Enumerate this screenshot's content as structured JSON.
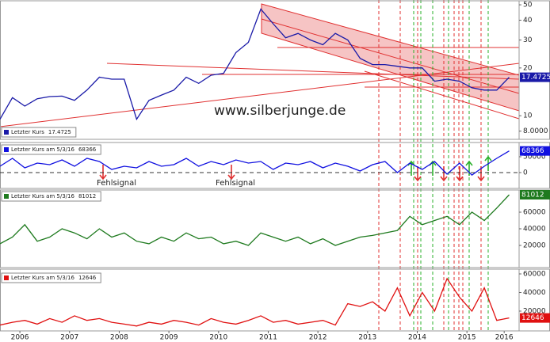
{
  "chart_data": [
    {
      "type": "line",
      "log_scale": true,
      "ylim": [
        7.1,
        53
      ],
      "xlim": [
        2006.1,
        2016.55
      ],
      "yticks": [
        {
          "value": 8,
          "label": "8.0000"
        },
        10,
        20,
        30,
        40,
        50
      ],
      "annotations": [
        "www.silberjunge.de"
      ],
      "series": [
        {
          "name": "Letzter Kurs",
          "color": "#1a1aa8",
          "x": [
            2006.1,
            2006.35,
            2006.6,
            2006.85,
            2007.1,
            2007.35,
            2007.6,
            2007.85,
            2008.1,
            2008.35,
            2008.6,
            2008.85,
            2009.1,
            2009.35,
            2009.6,
            2009.85,
            2010.1,
            2010.35,
            2010.6,
            2010.85,
            2011.1,
            2011.35,
            2011.6,
            2011.85,
            2012.1,
            2012.35,
            2012.6,
            2012.85,
            2013.1,
            2013.35,
            2013.6,
            2013.85,
            2014.1,
            2014.35,
            2014.6,
            2014.85,
            2015.1,
            2015.35,
            2015.6,
            2015.85,
            2016.1,
            2016.35
          ],
          "values": [
            9.5,
            13,
            11.5,
            12.8,
            13.2,
            13.3,
            12.5,
            14.5,
            17.5,
            17,
            17,
            9.5,
            12.5,
            13.5,
            14.5,
            17.5,
            16,
            18,
            18.5,
            25,
            29,
            47,
            38,
            31,
            33,
            30,
            28,
            33,
            30,
            23,
            21,
            21,
            20.5,
            20,
            20,
            16.5,
            17,
            16.5,
            15,
            14.5,
            14.5,
            17.4725
          ]
        }
      ]
    },
    {
      "type": "line",
      "ylim": [
        -50000,
        95000
      ],
      "xlim": [
        2006.1,
        2016.55
      ],
      "yticks": [
        0,
        50000
      ],
      "dashed_zero": true,
      "annotations": [
        "Fehlsignal",
        "Fehlsignal"
      ],
      "series": [
        {
          "name": "Letzter Kurs am 5/3/16",
          "color": "#1010e0",
          "x": [
            2006.1,
            2006.35,
            2006.6,
            2006.85,
            2007.1,
            2007.35,
            2007.6,
            2007.85,
            2008.1,
            2008.35,
            2008.6,
            2008.85,
            2009.1,
            2009.35,
            2009.6,
            2009.85,
            2010.1,
            2010.35,
            2010.6,
            2010.85,
            2011.1,
            2011.35,
            2011.6,
            2011.85,
            2012.1,
            2012.35,
            2012.6,
            2012.85,
            2013.1,
            2013.35,
            2013.6,
            2013.85,
            2014.1,
            2014.35,
            2014.6,
            2014.85,
            2015.1,
            2015.35,
            2015.6,
            2015.85,
            2016.1,
            2016.35
          ],
          "values": [
            20000,
            45000,
            15000,
            30000,
            25000,
            40000,
            20000,
            45000,
            35000,
            10000,
            20000,
            15000,
            35000,
            20000,
            25000,
            45000,
            20000,
            35000,
            25000,
            40000,
            30000,
            35000,
            10000,
            30000,
            25000,
            35000,
            15000,
            30000,
            20000,
            5000,
            25000,
            35000,
            0,
            30000,
            10000,
            35000,
            -5000,
            30000,
            -8000,
            20000,
            45000,
            68366
          ]
        }
      ]
    },
    {
      "type": "line",
      "ylim": [
        -6700,
        86700
      ],
      "xlim": [
        2006.1,
        2016.55
      ],
      "yticks": [
        20000,
        40000,
        60000
      ],
      "series": [
        {
          "name": "Letzter Kurs am 5/3/16",
          "color": "#1e7a1e",
          "x": [
            2006.1,
            2006.35,
            2006.6,
            2006.85,
            2007.1,
            2007.35,
            2007.6,
            2007.85,
            2008.1,
            2008.35,
            2008.6,
            2008.85,
            2009.1,
            2009.35,
            2009.6,
            2009.85,
            2010.1,
            2010.35,
            2010.6,
            2010.85,
            2011.1,
            2011.35,
            2011.6,
            2011.85,
            2012.1,
            2012.35,
            2012.6,
            2012.85,
            2013.1,
            2013.35,
            2013.6,
            2013.85,
            2014.1,
            2014.35,
            2014.6,
            2014.85,
            2015.1,
            2015.35,
            2015.6,
            2015.85,
            2016.1,
            2016.35
          ],
          "values": [
            22000,
            30000,
            45000,
            25000,
            30000,
            40000,
            35000,
            28000,
            40000,
            30000,
            35000,
            25000,
            22000,
            30000,
            25000,
            35000,
            28000,
            30000,
            22000,
            25000,
            20000,
            35000,
            30000,
            25000,
            30000,
            22000,
            28000,
            20000,
            25000,
            30000,
            32000,
            35000,
            38000,
            55000,
            45000,
            50000,
            55000,
            45000,
            60000,
            50000,
            65000,
            81012
          ]
        }
      ]
    },
    {
      "type": "line",
      "ylim": [
        -1300,
        65100
      ],
      "xlim": [
        2006.1,
        2016.55
      ],
      "yticks": [
        20000,
        40000,
        60000
      ],
      "xticks": [
        {
          "value": 2006.5,
          "label": "2006"
        },
        {
          "value": 2007.5,
          "label": "2007"
        },
        {
          "value": 2008.5,
          "label": "2008"
        },
        {
          "value": 2009.5,
          "label": "2009"
        },
        {
          "value": 2010.5,
          "label": "2010"
        },
        {
          "value": 2011.5,
          "label": "2011"
        },
        {
          "value": 2012.5,
          "label": "2012"
        },
        {
          "value": 2013.5,
          "label": "2013"
        },
        {
          "value": 2014.5,
          "label": "2014"
        },
        {
          "value": 2015.5,
          "label": "2015"
        },
        {
          "value": 2016.25,
          "label": "2016"
        }
      ],
      "series": [
        {
          "name": "Letzter Kurs am 5/3/16",
          "color": "#e01010",
          "x": [
            2006.1,
            2006.35,
            2006.6,
            2006.85,
            2007.1,
            2007.35,
            2007.6,
            2007.85,
            2008.1,
            2008.35,
            2008.6,
            2008.85,
            2009.1,
            2009.35,
            2009.6,
            2009.85,
            2010.1,
            2010.35,
            2010.6,
            2010.85,
            2011.1,
            2011.35,
            2011.6,
            2011.85,
            2012.1,
            2012.35,
            2012.6,
            2012.85,
            2013.1,
            2013.35,
            2013.6,
            2013.85,
            2014.1,
            2014.35,
            2014.6,
            2014.85,
            2015.1,
            2015.35,
            2015.6,
            2015.85,
            2016.1,
            2016.35
          ],
          "values": [
            5000,
            8000,
            10000,
            6000,
            12000,
            8000,
            15000,
            10000,
            12000,
            8000,
            6000,
            4000,
            8000,
            6000,
            10000,
            8000,
            5000,
            12000,
            8000,
            6000,
            10000,
            15000,
            8000,
            10000,
            6000,
            8000,
            10000,
            5000,
            28000,
            25000,
            30000,
            20000,
            45000,
            15000,
            40000,
            20000,
            55000,
            35000,
            20000,
            45000,
            10000,
            12646
          ]
        }
      ]
    }
  ]
}
